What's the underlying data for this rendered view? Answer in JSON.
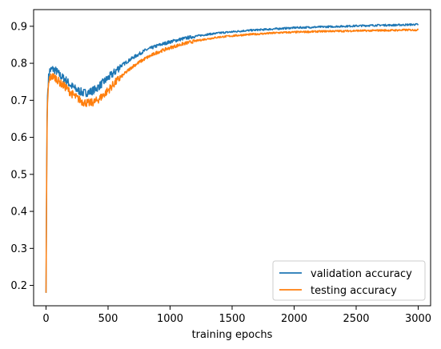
{
  "chart_data": {
    "type": "line",
    "title": "",
    "xlabel": "training epochs",
    "ylabel": "",
    "xlim": [
      -100,
      3100
    ],
    "ylim": [
      0.145,
      0.945
    ],
    "xticks": [
      0,
      500,
      1000,
      1500,
      2000,
      2500,
      3000
    ],
    "xtick_labels": [
      "0",
      "500",
      "1000",
      "1500",
      "2000",
      "2500",
      "3000"
    ],
    "yticks": [
      0.2,
      0.3,
      0.4,
      0.5,
      0.6,
      0.7,
      0.8,
      0.9
    ],
    "ytick_labels": [
      "0.2",
      "0.3",
      "0.4",
      "0.5",
      "0.6",
      "0.7",
      "0.8",
      "0.9"
    ],
    "grid": false,
    "legend_position": "lower-right",
    "series": [
      {
        "name": "validation accuracy",
        "color": "#1f77b4",
        "x": [
          0,
          5,
          10,
          20,
          30,
          50,
          80,
          120,
          160,
          200,
          250,
          300,
          350,
          400,
          450,
          500,
          550,
          600,
          700,
          800,
          900,
          1000,
          1100,
          1200,
          1300,
          1400,
          1500,
          1600,
          1700,
          1800,
          1900,
          2000,
          2100,
          2200,
          2300,
          2400,
          2500,
          2600,
          2700,
          2800,
          2900,
          3000
        ],
        "y": [
          0.18,
          0.5,
          0.7,
          0.76,
          0.78,
          0.785,
          0.78,
          0.765,
          0.755,
          0.74,
          0.728,
          0.72,
          0.722,
          0.73,
          0.745,
          0.76,
          0.775,
          0.792,
          0.815,
          0.835,
          0.848,
          0.858,
          0.866,
          0.873,
          0.878,
          0.882,
          0.885,
          0.888,
          0.89,
          0.892,
          0.894,
          0.896,
          0.897,
          0.898,
          0.899,
          0.9,
          0.901,
          0.902,
          0.903,
          0.903,
          0.904,
          0.905
        ]
      },
      {
        "name": "testing accuracy",
        "color": "#ff7f0e",
        "x": [
          0,
          5,
          10,
          20,
          30,
          50,
          80,
          120,
          160,
          200,
          250,
          300,
          350,
          400,
          450,
          500,
          550,
          600,
          700,
          800,
          900,
          1000,
          1100,
          1200,
          1300,
          1400,
          1500,
          1600,
          1700,
          1800,
          1900,
          2000,
          2100,
          2200,
          2300,
          2400,
          2500,
          2600,
          2700,
          2800,
          2900,
          3000
        ],
        "y": [
          0.18,
          0.48,
          0.68,
          0.74,
          0.76,
          0.765,
          0.76,
          0.745,
          0.735,
          0.72,
          0.706,
          0.695,
          0.692,
          0.697,
          0.71,
          0.727,
          0.745,
          0.762,
          0.792,
          0.813,
          0.83,
          0.842,
          0.852,
          0.86,
          0.866,
          0.871,
          0.874,
          0.877,
          0.879,
          0.881,
          0.883,
          0.884,
          0.885,
          0.886,
          0.887,
          0.887,
          0.888,
          0.888,
          0.889,
          0.889,
          0.89,
          0.89
        ]
      }
    ]
  }
}
